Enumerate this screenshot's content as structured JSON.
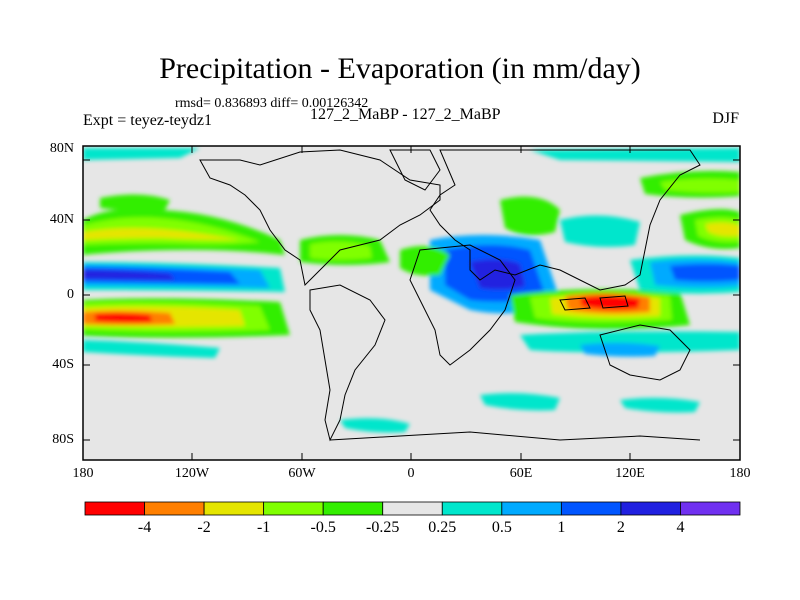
{
  "title": "Precipitation - Evaporation (in mm/day)",
  "stats": "rmsd= 0.836893 diff= 0.00126342",
  "left_label": "Expt = teyez-teydz1",
  "center_label": "127_2_MaBP - 127_2_MaBP",
  "right_label": "DJF",
  "y_ticks": [
    "80N",
    "40N",
    "0",
    "40S",
    "80S"
  ],
  "x_ticks": [
    "180",
    "120W",
    "60W",
    "0",
    "60E",
    "120E",
    "180"
  ],
  "colorbar": {
    "colors": [
      "#ff0000",
      "#ff7f00",
      "#e5e500",
      "#80ff00",
      "#33ee00",
      "#e6e6e6",
      "#00e6cc",
      "#00aaff",
      "#0055ff",
      "#2020e0",
      "#7030f0"
    ],
    "labels": [
      "-4",
      "-2",
      "-1",
      "-0.5",
      "-0.25",
      "0.25",
      "0.5",
      "1",
      "2",
      "4"
    ]
  }
}
